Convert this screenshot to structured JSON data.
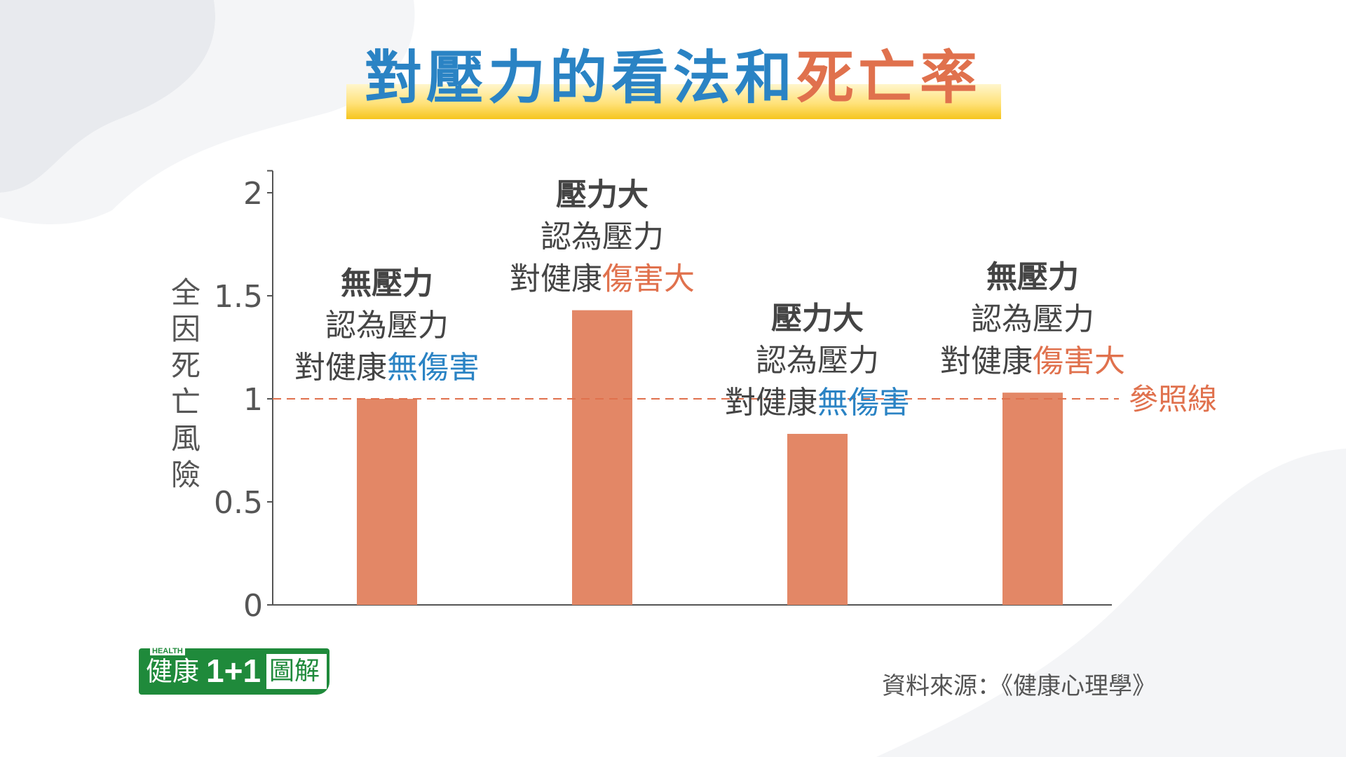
{
  "title": {
    "part1": "對壓力的看法和",
    "part2": "死亡率"
  },
  "colors": {
    "bar": "#e38766",
    "blue": "#2a83c4",
    "orange": "#e0714d",
    "axis": "#555555",
    "text": "#444444"
  },
  "chart_data": {
    "type": "bar",
    "ylabel": "全因死亡風險",
    "ylim": [
      0,
      2.1
    ],
    "yticks": [
      "0",
      "0.5",
      "1",
      "1.5",
      "2"
    ],
    "grid": false,
    "categories": [
      {
        "lines": [
          [
            {
              "t": "無壓力",
              "c": "dark"
            }
          ],
          [
            {
              "t": "認為壓力",
              "c": "dark"
            }
          ],
          [
            {
              "t": "對健康",
              "c": "dark"
            },
            {
              "t": "無傷害",
              "c": "blue"
            }
          ]
        ]
      },
      {
        "lines": [
          [
            {
              "t": "壓力大",
              "c": "dark"
            }
          ],
          [
            {
              "t": "認為壓力",
              "c": "dark"
            }
          ],
          [
            {
              "t": "對健康",
              "c": "dark"
            },
            {
              "t": "傷害大",
              "c": "orange"
            }
          ]
        ]
      },
      {
        "lines": [
          [
            {
              "t": "壓力大",
              "c": "dark"
            }
          ],
          [
            {
              "t": "認為壓力",
              "c": "dark"
            }
          ],
          [
            {
              "t": "對健康",
              "c": "dark"
            },
            {
              "t": "無傷害",
              "c": "blue"
            }
          ]
        ]
      },
      {
        "lines": [
          [
            {
              "t": "無壓力",
              "c": "dark"
            }
          ],
          [
            {
              "t": "認為壓力",
              "c": "dark"
            }
          ],
          [
            {
              "t": "對健康",
              "c": "dark"
            },
            {
              "t": "傷害大",
              "c": "orange"
            }
          ]
        ]
      }
    ],
    "values": [
      1.0,
      1.43,
      0.83,
      1.03
    ],
    "reference_line": {
      "value": 1,
      "label": "參照線"
    }
  },
  "source": "資料來源：《健康心理學》",
  "logo": {
    "health": "HEALTH",
    "word": "健康",
    "num": "1+1",
    "tu": "圖解"
  }
}
